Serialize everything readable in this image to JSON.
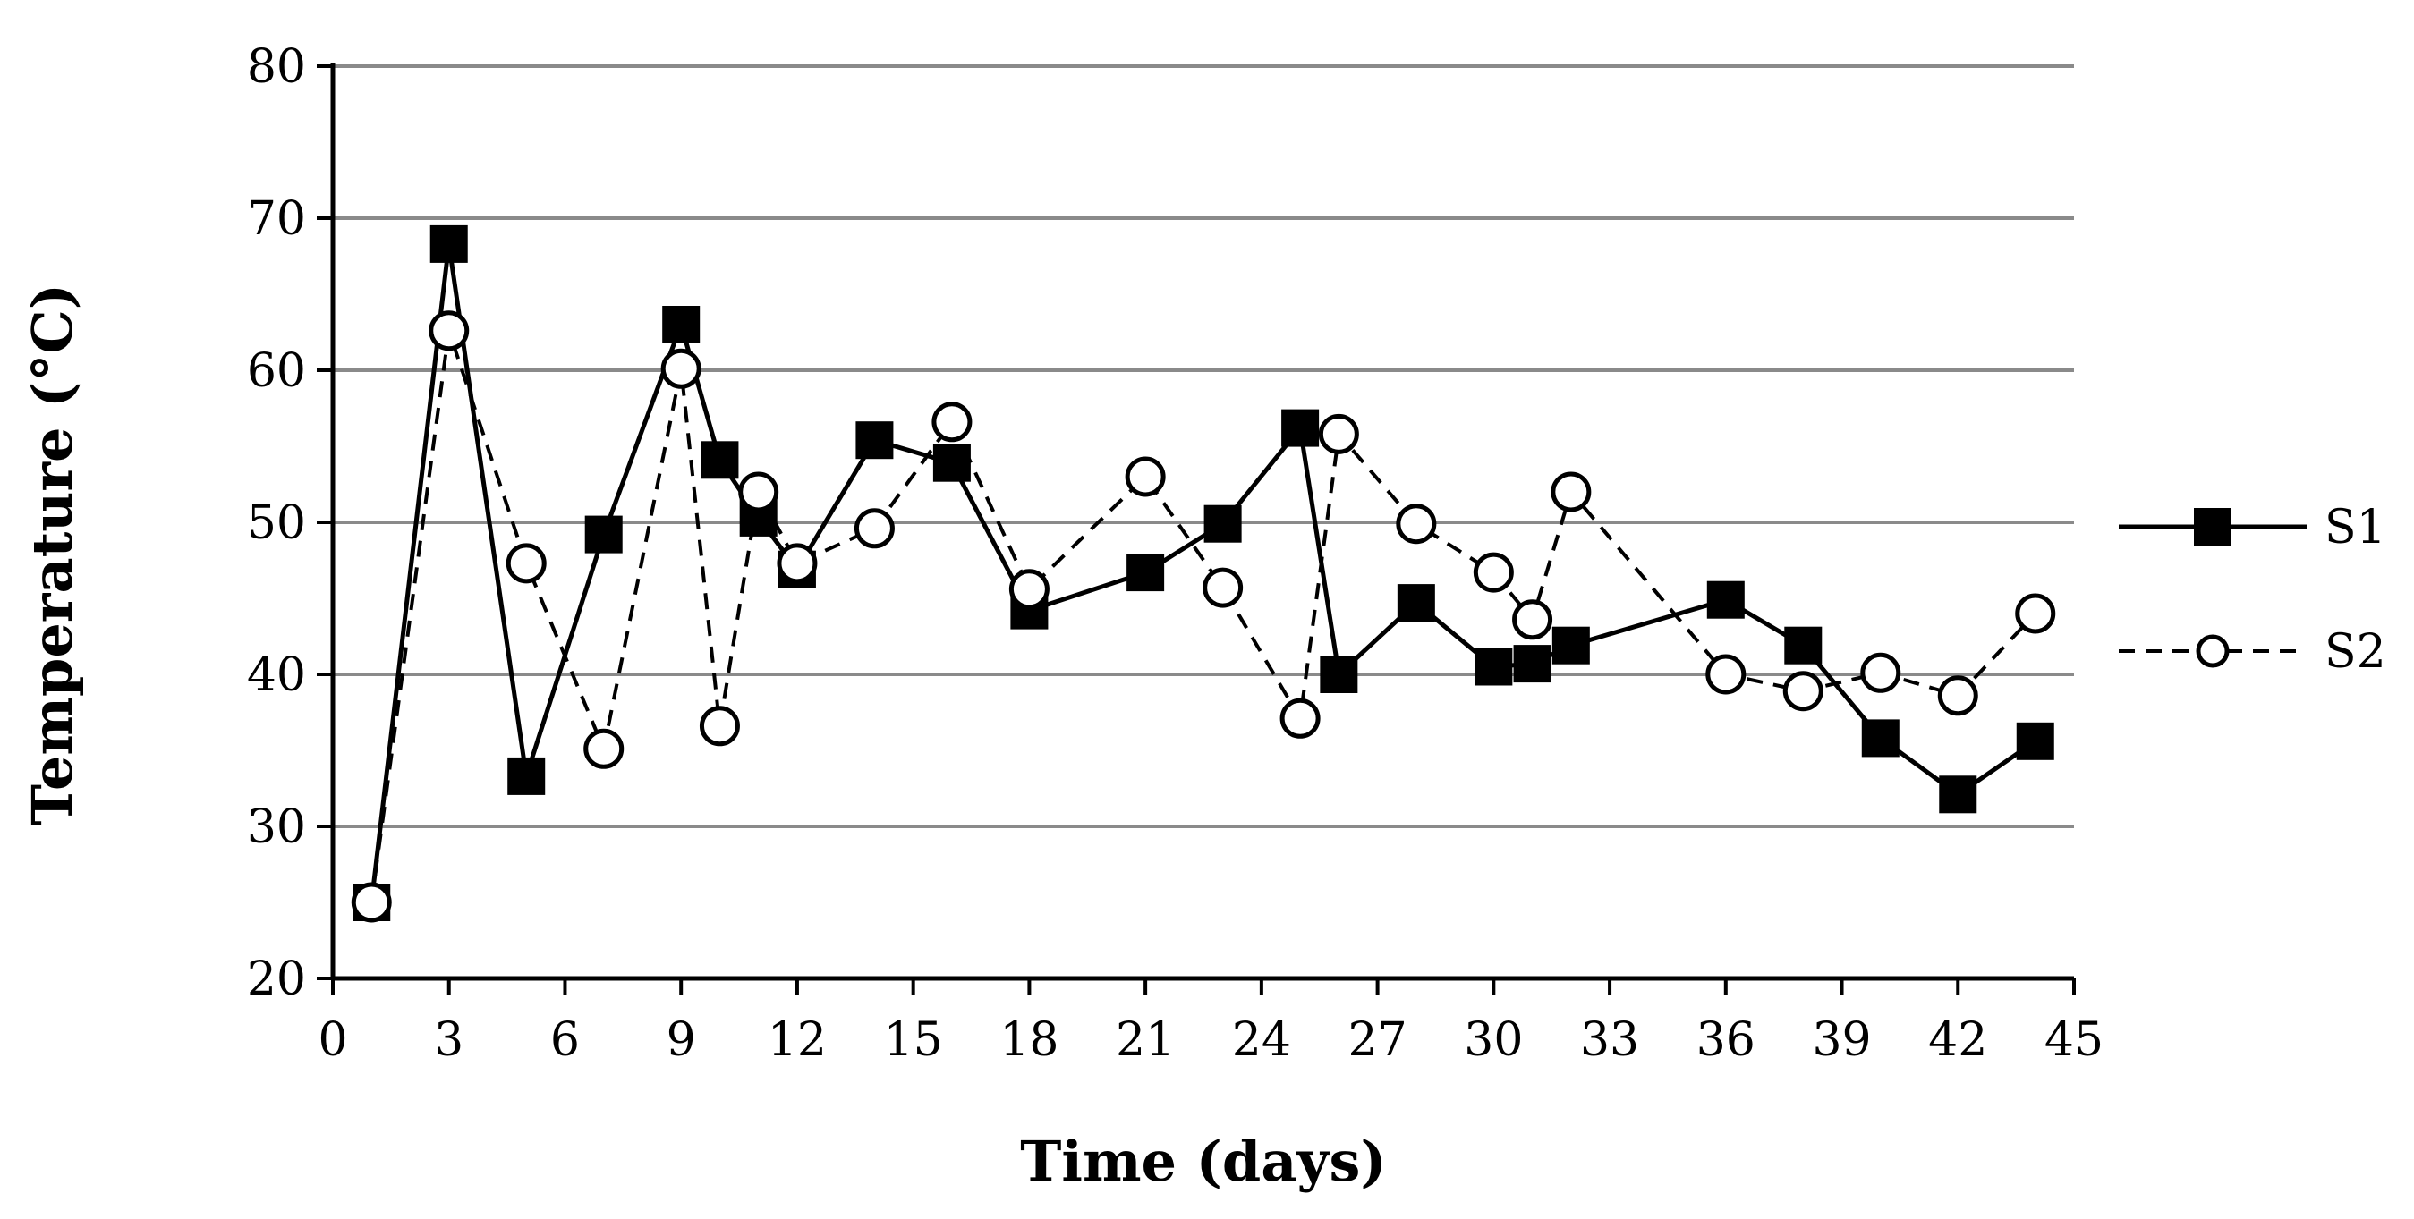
{
  "chart_data": {
    "type": "line",
    "title": "",
    "xlabel": "Time (days)",
    "ylabel": "Temperature (°C)",
    "xlim": [
      0,
      45
    ],
    "ylim": [
      20,
      80
    ],
    "xticks": [
      0,
      3,
      6,
      9,
      12,
      15,
      18,
      21,
      24,
      27,
      30,
      33,
      36,
      39,
      42,
      45
    ],
    "yticks": [
      20,
      30,
      40,
      50,
      60,
      70,
      80
    ],
    "grid": "horizontal",
    "legend_position": "right",
    "series": [
      {
        "name": "S1",
        "style": "solid",
        "marker": "filled-square",
        "x": [
          1,
          3,
          5,
          7,
          9,
          10,
          11,
          12,
          14,
          16,
          18,
          21,
          23,
          25,
          26,
          28,
          30,
          31,
          32,
          36,
          38,
          40,
          42,
          44
        ],
        "y": [
          25,
          68.3,
          33.3,
          49.2,
          63,
          54.1,
          50.3,
          46.9,
          55.4,
          53.9,
          44.2,
          46.7,
          49.9,
          56.2,
          40,
          44.7,
          40.5,
          40.7,
          41.9,
          44.9,
          41.9,
          35.8,
          32.1,
          35.6
        ]
      },
      {
        "name": "S2",
        "style": "dashed",
        "marker": "open-circle",
        "x": [
          1,
          3,
          5,
          7,
          9,
          10,
          11,
          12,
          14,
          16,
          18,
          21,
          23,
          25,
          26,
          28,
          30,
          31,
          32,
          36,
          38,
          40,
          42,
          44
        ],
        "y": [
          25,
          62.6,
          47.3,
          35.1,
          60.1,
          36.6,
          52,
          47.3,
          49.6,
          56.6,
          45.6,
          53,
          45.7,
          37.1,
          55.8,
          49.9,
          46.7,
          43.6,
          52,
          40,
          38.9,
          40.1,
          38.6,
          44
        ]
      }
    ]
  }
}
